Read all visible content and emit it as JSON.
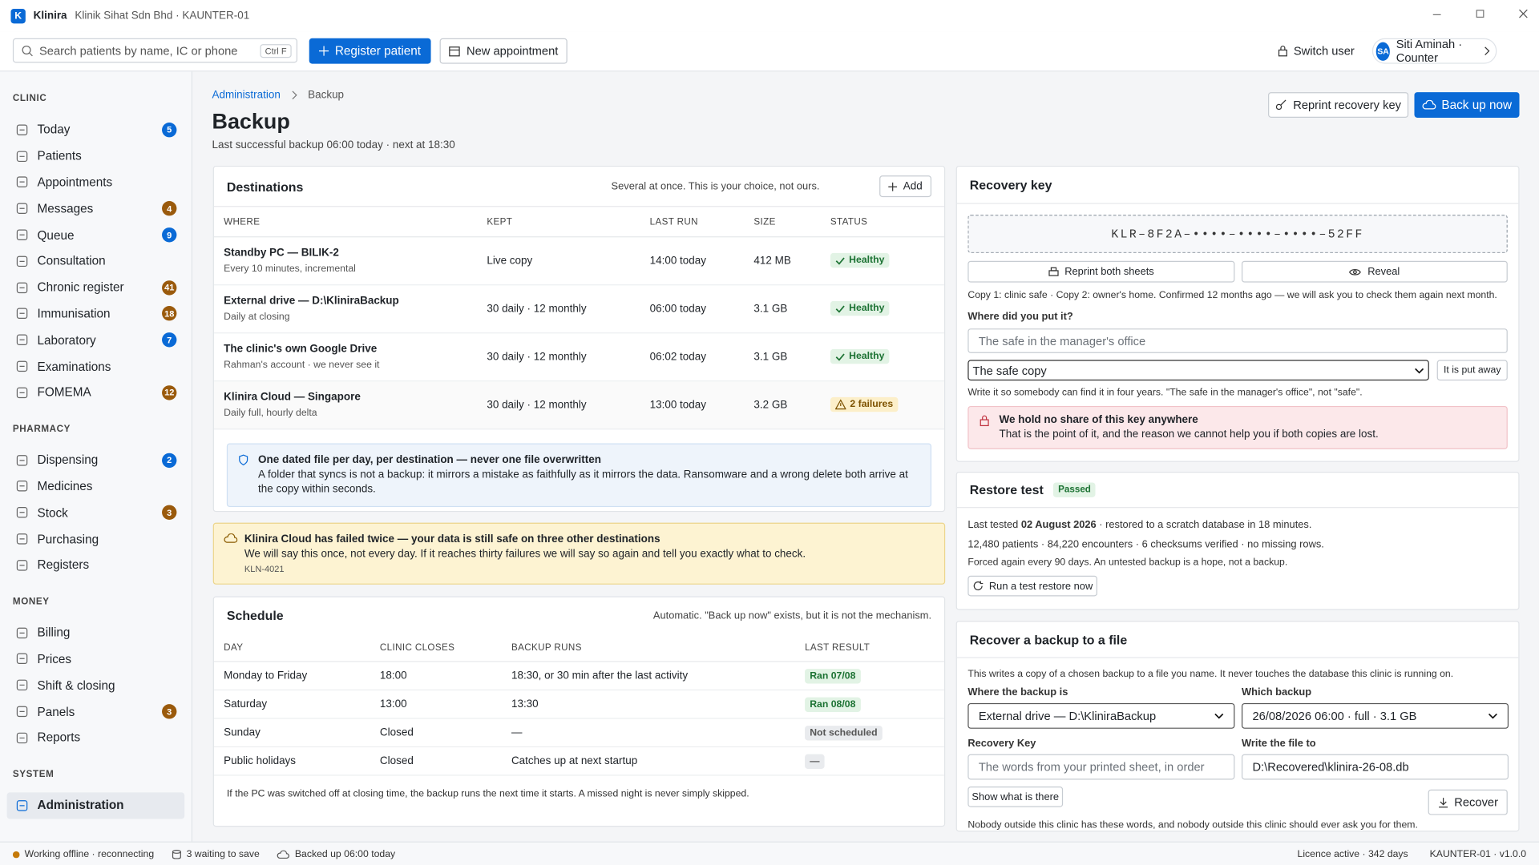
{
  "app": {
    "logo": "K",
    "name": "Klinira",
    "context": "Klinik Sihat Sdn Bhd · KAUNTER-01"
  },
  "toolbar": {
    "search": "Search patients by name, IC or phone",
    "shortcut": "Ctrl F",
    "register": "Register patient",
    "appointment": "New appointment",
    "switch_user": "Switch user",
    "user_initials": "SA",
    "user": "Siti Aminah · Counter"
  },
  "sidebar": [
    {
      "heading": "CLINIC",
      "items": [
        {
          "label": "Today",
          "count": 5,
          "tone": "blue"
        },
        {
          "label": "Patients"
        },
        {
          "label": "Appointments"
        },
        {
          "label": "Messages",
          "count": 4,
          "tone": "amber"
        },
        {
          "label": "Queue",
          "count": 9,
          "tone": "blue"
        },
        {
          "label": "Consultation"
        },
        {
          "label": "Chronic register",
          "count": 41,
          "tone": "amber"
        },
        {
          "label": "Immunisation",
          "count": 18,
          "tone": "amber"
        },
        {
          "label": "Laboratory",
          "count": 7,
          "tone": "blue"
        },
        {
          "label": "Examinations"
        },
        {
          "label": "FOMEMA",
          "count": 12,
          "tone": "amber"
        }
      ]
    },
    {
      "heading": "PHARMACY",
      "items": [
        {
          "label": "Dispensing",
          "count": 2,
          "tone": "blue"
        },
        {
          "label": "Medicines"
        },
        {
          "label": "Stock",
          "count": 3,
          "tone": "amber"
        },
        {
          "label": "Purchasing"
        },
        {
          "label": "Registers"
        }
      ]
    },
    {
      "heading": "MONEY",
      "items": [
        {
          "label": "Billing"
        },
        {
          "label": "Prices"
        },
        {
          "label": "Shift & closing"
        },
        {
          "label": "Panels",
          "count": 3,
          "tone": "amber"
        },
        {
          "label": "Reports"
        }
      ]
    },
    {
      "heading": "SYSTEM",
      "items": [
        {
          "label": "Administration",
          "active": true
        }
      ]
    }
  ],
  "page": {
    "breadcrumb": [
      "Administration",
      "Backup"
    ],
    "title": "Backup",
    "subtitle": "Last successful backup 06:00 today · next at 18:30",
    "reprint": "Reprint recovery key",
    "backup_now": "Back up now"
  },
  "destinations": {
    "title": "Destinations",
    "note": "Several at once. This is your choice, not ours.",
    "add": "Add",
    "columns": [
      "WHERE",
      "KEPT",
      "LAST RUN",
      "SIZE",
      "STATUS"
    ],
    "rows": [
      {
        "name": "Standby PC — BILIK-2",
        "detail": "Every 10 minutes, incremental",
        "kept": "Live copy",
        "last_run": "14:00 today",
        "size": "412 MB",
        "status": "Healthy",
        "tone": "ok"
      },
      {
        "name": "External drive — D:\\KliniraBackup",
        "detail": "Daily at closing",
        "kept": "30 daily · 12 monthly",
        "last_run": "06:00 today",
        "size": "3.1 GB",
        "status": "Healthy",
        "tone": "ok"
      },
      {
        "name": "The clinic's own Google Drive",
        "detail": "Rahman's account · we never see it",
        "kept": "30 daily · 12 monthly",
        "last_run": "06:02 today",
        "size": "3.1 GB",
        "status": "Healthy",
        "tone": "ok"
      },
      {
        "name": "Klinira Cloud — Singapore",
        "detail": "Daily full, hourly delta",
        "kept": "30 daily · 12 monthly",
        "last_run": "13:00 today",
        "size": "3.2 GB",
        "status": "2 failures",
        "tone": "warn"
      }
    ],
    "info_title": "One dated file per day, per destination — never one file overwritten",
    "info_text": "A folder that syncs is not a backup: it mirrors a mistake as faithfully as it mirrors the data. Ransomware and a wrong delete both arrive at the copy within seconds."
  },
  "alert": {
    "title": "Klinira Cloud has failed twice — your data is still safe on three other destinations",
    "text": "We will say this once, not every day. If it reaches thirty failures we will say so again and tell you exactly what to check.",
    "code": "KLN-4021"
  },
  "schedule": {
    "title": "Schedule",
    "note": "Automatic. \"Back up now\" exists, but it is not the mechanism.",
    "columns": [
      "DAY",
      "CLINIC CLOSES",
      "BACKUP RUNS",
      "LAST RESULT"
    ],
    "rows": [
      {
        "day": "Monday to Friday",
        "closes": "18:00",
        "runs": "18:30, or 30 min after the last activity",
        "result": "Ran 07/08",
        "tone": "ok"
      },
      {
        "day": "Saturday",
        "closes": "13:00",
        "runs": "13:30",
        "result": "Ran 08/08",
        "tone": "ok"
      },
      {
        "day": "Sunday",
        "closes": "Closed",
        "runs": "—",
        "result": "Not scheduled",
        "tone": "muted"
      },
      {
        "day": "Public holidays",
        "closes": "Closed",
        "runs": "Catches up at next startup",
        "result": "—",
        "tone": "muted"
      }
    ],
    "footnote": "If the PC was switched off at closing time, the backup runs the next time it starts. A missed night is never simply skipped."
  },
  "recovery_key": {
    "title": "Recovery key",
    "key": "KLR–8F2A–••••–••••–••••–52FF",
    "reprint": "Reprint both sheets",
    "reveal": "Reveal",
    "note": "Copy 1: clinic safe · Copy 2: owner's home. Confirmed 12 months ago — we will ask you to check them again next month.",
    "where_label": "Where did you put it?",
    "where_placeholder": "The safe in the manager's office",
    "copy_select": "The safe copy",
    "put_away": "It is put away",
    "hint": "Write it so somebody can find it in four years. \"The safe in the manager's office\", not \"safe\".",
    "warning_title": "We hold no share of this key anywhere",
    "warning_text": "That is the point of it, and the reason we cannot help you if both copies are lost."
  },
  "restore_test": {
    "title": "Restore test",
    "badge": "Passed",
    "tested_prefix": "Last tested",
    "tested_date": "02 August 2026",
    "tested_suffix": "· restored to a scratch database in 18 minutes.",
    "stats": "12,480 patients · 84,220 encounters · 6 checksums verified · no missing rows.",
    "policy": "Forced again every 90 days. An untested backup is a hope, not a backup.",
    "run": "Run a test restore now"
  },
  "recover": {
    "title": "Recover a backup to a file",
    "intro": "This writes a copy of a chosen backup to a file you name. It never touches the database this clinic is running on.",
    "where_label": "Where the backup is",
    "where_value": "External drive — D:\\KliniraBackup",
    "which_label": "Which backup",
    "which_value": "26/08/2026 06:00 · full · 3.1 GB",
    "key_label": "Recovery Key",
    "key_placeholder": "The words from your printed sheet, in order",
    "file_label": "Write the file to",
    "file_value": "D:\\Recovered\\klinira-26-08.db",
    "show": "Show what is there",
    "recover": "Recover",
    "footer": "Nobody outside this clinic has these words, and nobody outside this clinic should ever ask you for them."
  },
  "status_bar": {
    "connection": "Working offline · reconnecting",
    "queue": "3 waiting to save",
    "backed_up": "Backed up 06:00 today",
    "licence": "Licence active · 342 days",
    "version": "KAUNTER-01 · v1.0.0"
  }
}
